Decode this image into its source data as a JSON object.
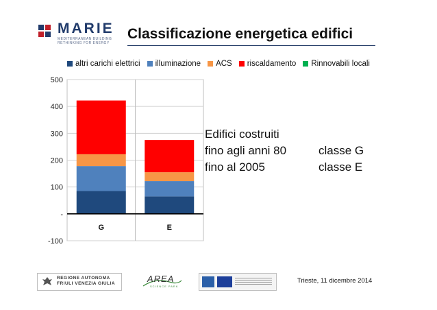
{
  "header": {
    "logo_name": "MARIE",
    "logo_sub_line1": "MEDITERRANEAN BUILDING",
    "logo_sub_line2": "RETHINKING FOR ENERGY",
    "title": "Classificazione energetica edifici"
  },
  "legend": [
    {
      "label": "altri carichi elettrici",
      "color": "#1f497d"
    },
    {
      "label": "illuminazione",
      "color": "#4f81bd"
    },
    {
      "label": "ACS",
      "color": "#f79646"
    },
    {
      "label": "riscaldamento",
      "color": "#ff0000"
    },
    {
      "label": "Rinnovabili locali",
      "color": "#00b050"
    }
  ],
  "chart_data": {
    "type": "bar",
    "stacked": true,
    "categories": [
      "G",
      "E"
    ],
    "series": [
      {
        "name": "altri carichi elettrici",
        "color": "#1f497d",
        "values": [
          85,
          65
        ]
      },
      {
        "name": "illuminazione",
        "color": "#4f81bd",
        "values": [
          93,
          57
        ]
      },
      {
        "name": "ACS",
        "color": "#f79646",
        "values": [
          44,
          33
        ]
      },
      {
        "name": "riscaldamento",
        "color": "#ff0000",
        "values": [
          200,
          120
        ]
      },
      {
        "name": "Rinnovabili locali",
        "color": "#00b050",
        "values": [
          0,
          0
        ]
      }
    ],
    "yticks": [
      "500",
      "400",
      "300",
      "200",
      "100",
      "-",
      "-100"
    ],
    "ylim": [
      -100,
      500
    ],
    "grid": true,
    "legend_position": "top"
  },
  "note": {
    "line1": "Edifici costruiti",
    "row2_left": "fino agli anni 80",
    "row2_right": "classe G",
    "row3_left": "fino al 2005",
    "row3_right": "classe E"
  },
  "footer": {
    "fvg_line1": "REGIONE AUTONOMA",
    "fvg_line2": "FRIULI VENEZIA GIULIA",
    "area_name": "AREA",
    "area_sub": "SCIENCE PARK",
    "date": "Trieste, 11 dicembre 2014"
  }
}
